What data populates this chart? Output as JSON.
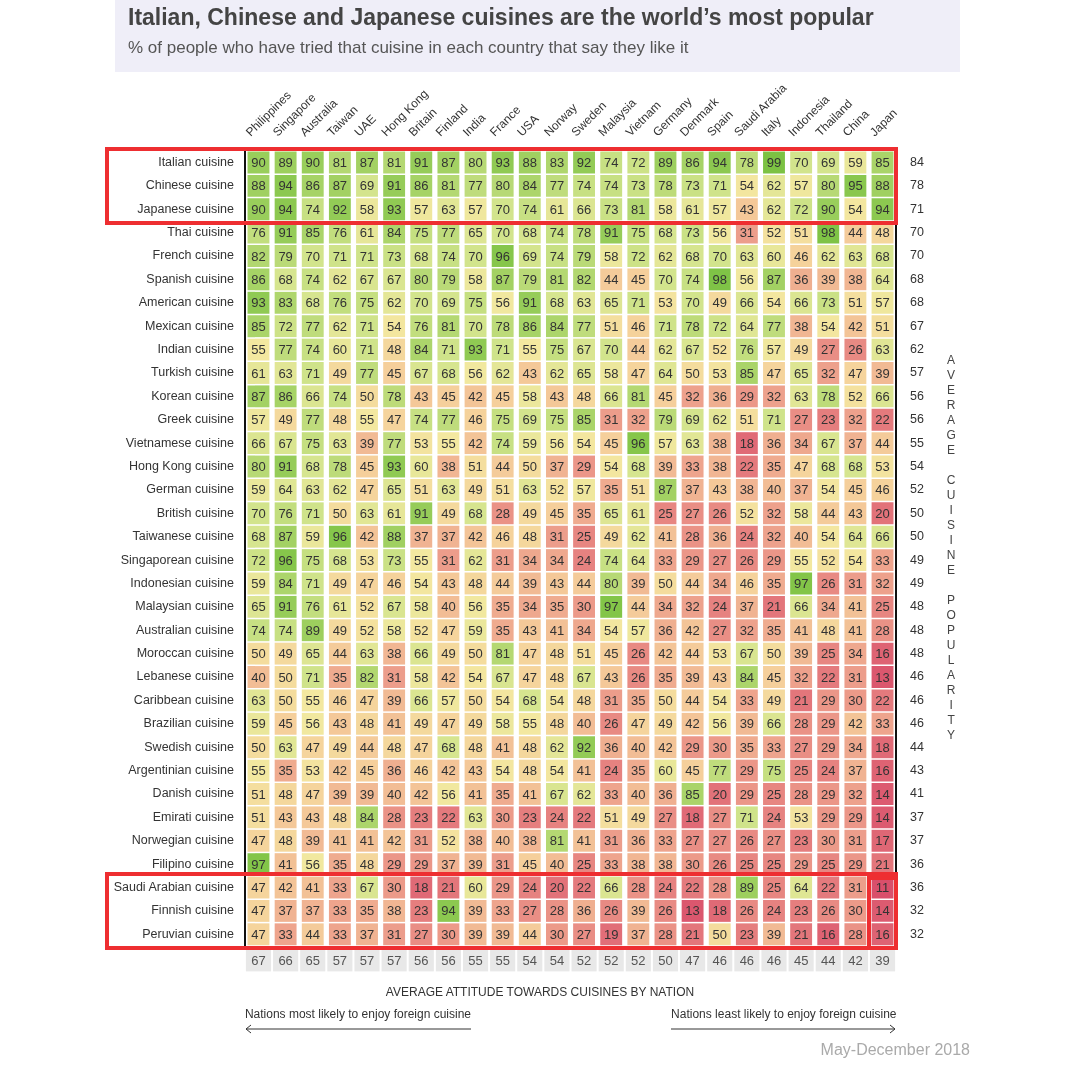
{
  "chart_data": {
    "type": "heatmap",
    "title": "Italian, Chinese and Japanese cuisines are the world’s most popular",
    "subtitle": "% of people who have tried that cuisine in each country that say they like it",
    "xlabel": "AVERAGE ATTITUDE TOWARDS CUISINES BY NATION",
    "y2label": "AVERAGE CUISINE POPULARITY",
    "categories": [
      "Philippines",
      "Singapore",
      "Australia",
      "Taiwan",
      "UAE",
      "Hong Kong",
      "Britain",
      "Finland",
      "India",
      "France",
      "USA",
      "Norway",
      "Sweden",
      "Malaysia",
      "Vietnam",
      "Germany",
      "Denmark",
      "Spain",
      "Saudi Arabia",
      "Italy",
      "Indonesia",
      "Thailand",
      "China",
      "Japan"
    ],
    "y_categories": [
      "Italian cuisine",
      "Chinese cuisine",
      "Japanese cuisine",
      "Thai cuisine",
      "French cuisine",
      "Spanish cuisine",
      "American cuisine",
      "Mexican cuisine",
      "Indian cuisine",
      "Turkish cuisine",
      "Korean cuisine",
      "Greek cuisine",
      "Vietnamese cuisine",
      "Hong Kong cuisine",
      "German cuisine",
      "British cuisine",
      "Taiwanese cuisine",
      "Singaporean cuisine",
      "Indonesian cuisine",
      "Malaysian cuisine",
      "Australian cuisine",
      "Moroccan cuisine",
      "Lebanese cuisine",
      "Caribbean cuisine",
      "Brazilian cuisine",
      "Swedish cuisine",
      "Argentinian cuisine",
      "Danish cuisine",
      "Emirati cuisine",
      "Norwegian cuisine",
      "Filipino cuisine",
      "Saudi Arabian cuisine",
      "Finnish cuisine",
      "Peruvian cuisine"
    ],
    "y2_categories": [
      "84",
      "78",
      "71",
      "70",
      "70",
      "68",
      "68",
      "67",
      "62",
      "57",
      "56",
      "56",
      "55",
      "54",
      "52",
      "50",
      "50",
      "49",
      "49",
      "48",
      "48",
      "48",
      "46",
      "46",
      "46",
      "44",
      "43",
      "41",
      "37",
      "37",
      "36",
      "36",
      "32",
      "32"
    ],
    "cells": [
      [
        90,
        89,
        90,
        81,
        87,
        81,
        91,
        87,
        80,
        93,
        88,
        83,
        92,
        74,
        72,
        89,
        86,
        94,
        78,
        99,
        70,
        69,
        59,
        85
      ],
      [
        88,
        94,
        86,
        87,
        69,
        91,
        86,
        81,
        77,
        80,
        84,
        77,
        74,
        74,
        73,
        78,
        73,
        71,
        54,
        62,
        57,
        80,
        95,
        88
      ],
      [
        90,
        94,
        74,
        92,
        58,
        93,
        57,
        63,
        57,
        70,
        74,
        61,
        66,
        73,
        81,
        58,
        61,
        57,
        43,
        62,
        72,
        90,
        54,
        94
      ],
      [
        76,
        91,
        85,
        76,
        61,
        84,
        75,
        77,
        65,
        70,
        68,
        74,
        78,
        91,
        75,
        68,
        73,
        56,
        31,
        52,
        51,
        98,
        44,
        48
      ],
      [
        82,
        79,
        70,
        71,
        71,
        73,
        68,
        74,
        70,
        96,
        69,
        74,
        79,
        58,
        72,
        62,
        68,
        70,
        63,
        60,
        46,
        62,
        63,
        68
      ],
      [
        86,
        68,
        74,
        62,
        67,
        67,
        80,
        79,
        58,
        87,
        79,
        81,
        82,
        44,
        45,
        70,
        74,
        98,
        56,
        87,
        36,
        39,
        38,
        64
      ],
      [
        93,
        83,
        68,
        76,
        75,
        62,
        70,
        69,
        75,
        56,
        91,
        68,
        63,
        65,
        71,
        53,
        70,
        49,
        66,
        54,
        66,
        73,
        51,
        57
      ],
      [
        85,
        72,
        77,
        62,
        71,
        54,
        76,
        81,
        70,
        78,
        86,
        84,
        77,
        51,
        46,
        71,
        78,
        72,
        64,
        77,
        38,
        54,
        42,
        51
      ],
      [
        55,
        77,
        74,
        60,
        71,
        48,
        84,
        71,
        93,
        71,
        55,
        75,
        67,
        70,
        44,
        62,
        67,
        52,
        76,
        57,
        49,
        27,
        26,
        63
      ],
      [
        61,
        63,
        71,
        49,
        77,
        45,
        67,
        68,
        56,
        62,
        43,
        62,
        65,
        58,
        47,
        64,
        50,
        53,
        85,
        47,
        65,
        32,
        47,
        39
      ],
      [
        87,
        86,
        66,
        74,
        50,
        78,
        43,
        45,
        42,
        45,
        58,
        43,
        48,
        66,
        81,
        45,
        32,
        36,
        29,
        32,
        63,
        78,
        52,
        66
      ],
      [
        57,
        49,
        77,
        48,
        55,
        47,
        74,
        77,
        46,
        75,
        69,
        75,
        85,
        31,
        32,
        79,
        69,
        62,
        51,
        71,
        27,
        23,
        32,
        22
      ],
      [
        66,
        67,
        75,
        63,
        39,
        77,
        53,
        55,
        42,
        74,
        59,
        56,
        54,
        45,
        96,
        57,
        63,
        38,
        18,
        36,
        34,
        67,
        37,
        44
      ],
      [
        80,
        91,
        68,
        78,
        45,
        93,
        60,
        38,
        51,
        44,
        50,
        37,
        29,
        54,
        68,
        39,
        33,
        38,
        22,
        35,
        47,
        68,
        68,
        53
      ],
      [
        59,
        64,
        63,
        62,
        47,
        65,
        51,
        63,
        49,
        51,
        63,
        52,
        57,
        35,
        51,
        87,
        37,
        43,
        38,
        40,
        37,
        54,
        45,
        46
      ],
      [
        70,
        76,
        71,
        50,
        63,
        61,
        91,
        49,
        68,
        28,
        49,
        45,
        35,
        65,
        61,
        25,
        27,
        26,
        52,
        32,
        58,
        44,
        43,
        20
      ],
      [
        68,
        87,
        59,
        96,
        42,
        88,
        37,
        37,
        42,
        46,
        48,
        31,
        25,
        49,
        62,
        41,
        28,
        36,
        24,
        32,
        40,
        54,
        64,
        66
      ],
      [
        72,
        96,
        75,
        68,
        53,
        73,
        55,
        31,
        62,
        31,
        34,
        34,
        24,
        74,
        64,
        33,
        29,
        27,
        26,
        29,
        55,
        52,
        54,
        33
      ],
      [
        59,
        84,
        71,
        49,
        47,
        46,
        54,
        43,
        48,
        44,
        39,
        43,
        44,
        80,
        39,
        50,
        44,
        34,
        46,
        35,
        97,
        26,
        31,
        32
      ],
      [
        65,
        91,
        76,
        61,
        52,
        67,
        58,
        40,
        56,
        35,
        34,
        35,
        30,
        97,
        44,
        34,
        32,
        24,
        37,
        21,
        66,
        34,
        41,
        25
      ],
      [
        74,
        74,
        89,
        49,
        52,
        58,
        52,
        47,
        59,
        35,
        43,
        41,
        34,
        54,
        57,
        36,
        42,
        27,
        32,
        35,
        41,
        48,
        41,
        28
      ],
      [
        50,
        49,
        65,
        44,
        63,
        38,
        66,
        49,
        50,
        81,
        47,
        48,
        51,
        45,
        26,
        42,
        44,
        53,
        67,
        50,
        39,
        25,
        34,
        16
      ],
      [
        40,
        50,
        71,
        35,
        82,
        31,
        58,
        42,
        54,
        67,
        47,
        48,
        67,
        43,
        26,
        35,
        39,
        43,
        84,
        45,
        32,
        22,
        31,
        13
      ],
      [
        63,
        50,
        55,
        46,
        47,
        39,
        66,
        57,
        50,
        54,
        68,
        54,
        48,
        31,
        35,
        50,
        44,
        54,
        33,
        49,
        21,
        29,
        30,
        22
      ],
      [
        59,
        45,
        56,
        43,
        48,
        41,
        49,
        47,
        49,
        58,
        55,
        48,
        40,
        26,
        47,
        49,
        42,
        56,
        39,
        66,
        28,
        29,
        42,
        33
      ],
      [
        50,
        63,
        47,
        49,
        44,
        48,
        47,
        68,
        48,
        41,
        48,
        62,
        92,
        36,
        40,
        42,
        29,
        30,
        35,
        33,
        27,
        29,
        34,
        18
      ],
      [
        55,
        35,
        53,
        42,
        45,
        36,
        46,
        42,
        43,
        54,
        48,
        54,
        41,
        24,
        35,
        60,
        45,
        77,
        29,
        75,
        25,
        24,
        37,
        16
      ],
      [
        51,
        48,
        47,
        39,
        39,
        40,
        42,
        56,
        41,
        35,
        41,
        67,
        62,
        33,
        40,
        36,
        85,
        20,
        29,
        25,
        28,
        29,
        32,
        14
      ],
      [
        51,
        43,
        43,
        48,
        84,
        28,
        23,
        22,
        63,
        30,
        23,
        24,
        22,
        51,
        49,
        27,
        18,
        27,
        71,
        24,
        53,
        29,
        29,
        14
      ],
      [
        47,
        48,
        39,
        41,
        41,
        42,
        31,
        52,
        38,
        40,
        38,
        81,
        41,
        31,
        36,
        33,
        27,
        27,
        26,
        27,
        23,
        30,
        31,
        17
      ],
      [
        97,
        41,
        56,
        35,
        48,
        29,
        29,
        37,
        39,
        31,
        45,
        40,
        25,
        33,
        38,
        38,
        30,
        26,
        25,
        25,
        29,
        25,
        29,
        21
      ],
      [
        47,
        42,
        41,
        33,
        67,
        30,
        18,
        21,
        60,
        29,
        24,
        20,
        22,
        66,
        28,
        24,
        22,
        28,
        89,
        25,
        64,
        22,
        31,
        11
      ],
      [
        47,
        37,
        37,
        33,
        35,
        38,
        23,
        94,
        39,
        33,
        27,
        28,
        36,
        26,
        39,
        26,
        13,
        18,
        26,
        24,
        23,
        26,
        30,
        14
      ],
      [
        47,
        33,
        44,
        33,
        37,
        31,
        27,
        30,
        39,
        39,
        44,
        30,
        27,
        19,
        37,
        28,
        21,
        50,
        23,
        39,
        21,
        16,
        28,
        16
      ]
    ],
    "data_labels": true,
    "annotations": [
      "67",
      "66",
      "65",
      "57",
      "57",
      "57",
      "56",
      "56",
      "55",
      "55",
      "54",
      "54",
      "52",
      "52",
      "52",
      "50",
      "47",
      "46",
      "46",
      "46",
      "45",
      "44",
      "42",
      "39",
      "Nations most likely to enjoy foreign cuisine",
      "Nations least likely to enjoy foreign cuisine",
      "May-December 2018"
    ]
  }
}
